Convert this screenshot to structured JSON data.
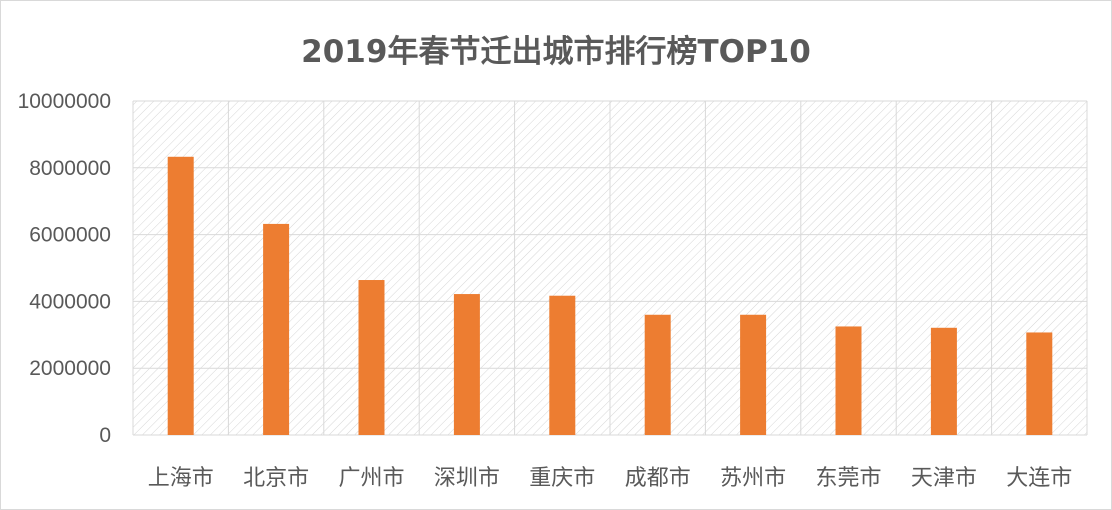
{
  "chart_data": {
    "type": "bar",
    "title": "2019年春节迁出城市排行榜TOP10",
    "xlabel": "",
    "ylabel": "",
    "categories": [
      "上海市",
      "北京市",
      "广州市",
      "深圳市",
      "重庆市",
      "成都市",
      "苏州市",
      "东莞市",
      "天津市",
      "大连市"
    ],
    "values": [
      8330000,
      6320000,
      4640000,
      4220000,
      4170000,
      3600000,
      3600000,
      3250000,
      3210000,
      3070000
    ],
    "ylim": [
      0,
      10000000
    ],
    "yticks": [
      "0",
      "2000000",
      "4000000",
      "6000000",
      "8000000",
      "10000000"
    ],
    "grid": true,
    "legend": "none",
    "bar_color": "#ED7D31",
    "plot_pattern": "diagonal-hatch"
  }
}
